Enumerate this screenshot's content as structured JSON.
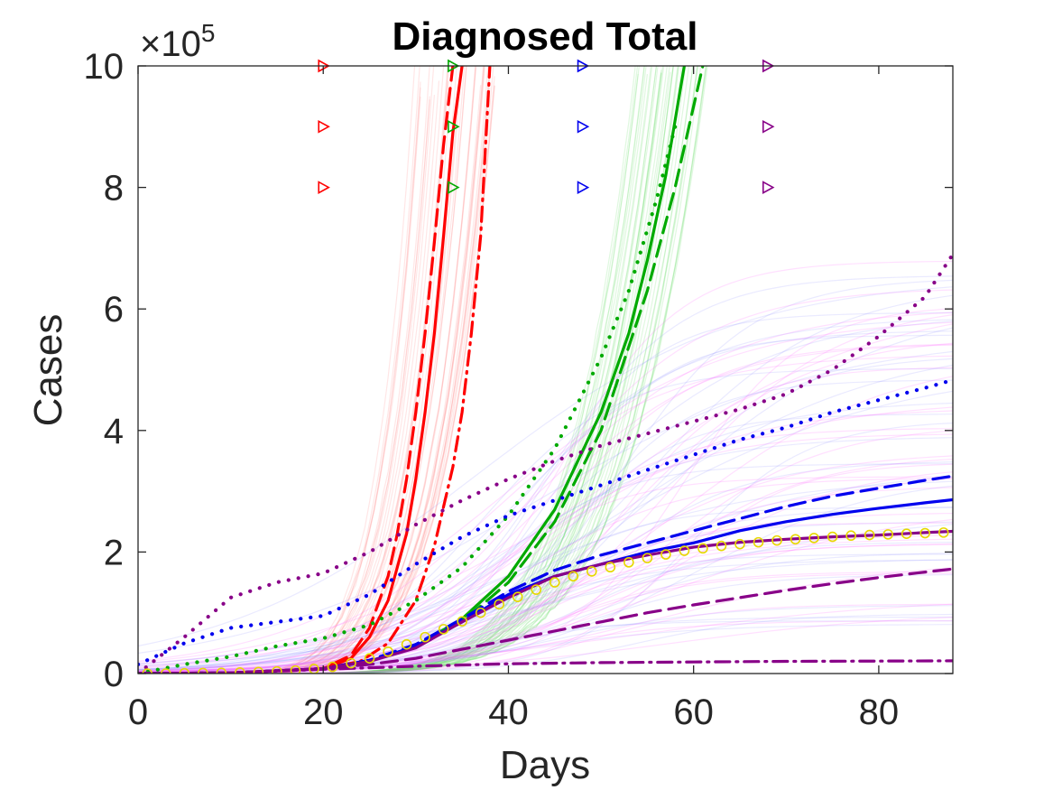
{
  "chart_data": {
    "type": "line",
    "title": "Diagnosed Total",
    "xlabel": "Days",
    "ylabel": "Cases",
    "xlim": [
      0,
      88
    ],
    "ylim": [
      0,
      1000000
    ],
    "x_ticks": [
      0,
      20,
      40,
      60,
      80
    ],
    "y_ticks": [
      0,
      200000,
      400000,
      600000,
      800000,
      1000000
    ],
    "x_tick_labels": [
      "0",
      "20",
      "40",
      "60",
      "80"
    ],
    "y_tick_labels": [
      "0",
      "2",
      "4",
      "6",
      "8",
      "10"
    ],
    "y_multiplier_base": "×10",
    "y_multiplier_exp": "5",
    "grid": false,
    "series": [
      {
        "name": "red solid",
        "color": "#ff0000",
        "style": "solid",
        "x": [
          0,
          10,
          20,
          23,
          25,
          27,
          29,
          30,
          31,
          32,
          33,
          34,
          35
        ],
        "y": [
          0,
          1000,
          8000,
          25000,
          60000,
          120000,
          230000,
          320000,
          430000,
          560000,
          720000,
          890000,
          1000000
        ]
      },
      {
        "name": "red dashed",
        "color": "#ff0000",
        "style": "dashed",
        "x": [
          0,
          10,
          20,
          23,
          25,
          27,
          28,
          29,
          30,
          31,
          32,
          33,
          34
        ],
        "y": [
          0,
          1000,
          8000,
          30000,
          75000,
          160000,
          230000,
          320000,
          430000,
          560000,
          710000,
          870000,
          1000000
        ]
      },
      {
        "name": "red dashdot",
        "color": "#ff0000",
        "style": "dashdot",
        "x": [
          0,
          10,
          20,
          24,
          27,
          30,
          32,
          34,
          35,
          36,
          37,
          38
        ],
        "y": [
          0,
          1000,
          8000,
          20000,
          50000,
          120000,
          210000,
          340000,
          430000,
          560000,
          720000,
          1000000
        ]
      },
      {
        "name": "green solid",
        "color": "#00aa00",
        "style": "solid",
        "x": [
          0,
          10,
          20,
          25,
          30,
          35,
          40,
          45,
          50,
          53,
          55,
          57,
          59
        ],
        "y": [
          0,
          1000,
          8000,
          20000,
          45000,
          90000,
          160000,
          270000,
          430000,
          560000,
          680000,
          820000,
          1000000
        ]
      },
      {
        "name": "green dashed",
        "color": "#00aa00",
        "style": "dashed",
        "x": [
          0,
          10,
          20,
          25,
          30,
          35,
          40,
          45,
          50,
          55,
          58,
          61
        ],
        "y": [
          0,
          1000,
          8000,
          20000,
          45000,
          85000,
          150000,
          250000,
          400000,
          630000,
          800000,
          1000000
        ]
      },
      {
        "name": "green dotted",
        "color": "#00aa00",
        "style": "dotted",
        "x": [
          0,
          5,
          10,
          15,
          20,
          25,
          30,
          35,
          40,
          45,
          50,
          53,
          56,
          58
        ],
        "y": [
          0,
          15000,
          28000,
          45000,
          58000,
          80000,
          120000,
          175000,
          260000,
          370000,
          520000,
          630000,
          780000,
          900000
        ]
      },
      {
        "name": "blue solid",
        "color": "#0000ee",
        "style": "solid",
        "x": [
          0,
          10,
          20,
          25,
          30,
          35,
          40,
          45,
          50,
          55,
          60,
          65,
          70,
          75,
          80,
          85,
          88
        ],
        "y": [
          0,
          1000,
          8000,
          20000,
          45000,
          85000,
          130000,
          160000,
          180000,
          200000,
          215000,
          235000,
          250000,
          262000,
          272000,
          281000,
          286000
        ]
      },
      {
        "name": "blue dashed",
        "color": "#0000ee",
        "style": "dashed",
        "x": [
          0,
          10,
          20,
          25,
          30,
          35,
          40,
          45,
          50,
          55,
          60,
          65,
          70,
          75,
          80,
          85,
          88
        ],
        "y": [
          0,
          1000,
          8000,
          22000,
          48000,
          90000,
          135000,
          170000,
          195000,
          215000,
          235000,
          255000,
          275000,
          292000,
          305000,
          318000,
          325000
        ]
      },
      {
        "name": "blue dotted",
        "color": "#0000ee",
        "style": "dotted",
        "x": [
          0,
          5,
          10,
          15,
          20,
          25,
          30,
          35,
          40,
          45,
          50,
          55,
          60,
          65,
          70,
          75,
          80,
          85,
          88
        ],
        "y": [
          15000,
          50000,
          75000,
          85000,
          95000,
          130000,
          180000,
          225000,
          260000,
          285000,
          310000,
          335000,
          360000,
          385000,
          405000,
          430000,
          450000,
          470000,
          483000
        ]
      },
      {
        "name": "purple solid",
        "color": "#880088",
        "style": "solid",
        "x": [
          0,
          10,
          20,
          25,
          30,
          35,
          40,
          45,
          50,
          55,
          60,
          65,
          70,
          75,
          80,
          85,
          88
        ],
        "y": [
          0,
          1000,
          8000,
          20000,
          42000,
          85000,
          125000,
          160000,
          180000,
          195000,
          208000,
          216000,
          221000,
          225000,
          228000,
          232000,
          234000
        ]
      },
      {
        "name": "purple dashed",
        "color": "#880088",
        "style": "dashed",
        "x": [
          0,
          10,
          20,
          25,
          30,
          35,
          40,
          45,
          50,
          55,
          60,
          65,
          70,
          75,
          80,
          85,
          88
        ],
        "y": [
          0,
          1000,
          8000,
          15000,
          25000,
          40000,
          55000,
          70000,
          85000,
          100000,
          113000,
          125000,
          137000,
          148000,
          158000,
          167000,
          172000
        ]
      },
      {
        "name": "purple dashdot",
        "color": "#880088",
        "style": "dashdot",
        "x": [
          0,
          10,
          20,
          30,
          40,
          50,
          60,
          70,
          80,
          88
        ],
        "y": [
          0,
          1000,
          7000,
          12000,
          16000,
          18000,
          19000,
          20000,
          20500,
          21000
        ]
      },
      {
        "name": "purple dotted",
        "color": "#880088",
        "style": "dotted",
        "x": [
          0,
          5,
          10,
          15,
          20,
          25,
          30,
          35,
          40,
          45,
          50,
          55,
          60,
          65,
          70,
          75,
          80,
          85,
          88
        ],
        "y": [
          0,
          60000,
          125000,
          150000,
          165000,
          200000,
          245000,
          285000,
          320000,
          350000,
          375000,
          395000,
          415000,
          435000,
          460000,
          500000,
          555000,
          620000,
          690000
        ]
      },
      {
        "name": "observed data",
        "color": "#e6d800",
        "style": "markers",
        "x": [
          1,
          3,
          5,
          7,
          9,
          11,
          13,
          15,
          17,
          19,
          21,
          23,
          25,
          27,
          29,
          31,
          33,
          35,
          37,
          39,
          41,
          43,
          45,
          47,
          49,
          51,
          53,
          55,
          57,
          59,
          61,
          63,
          65,
          67,
          69,
          71,
          73,
          75,
          77,
          79,
          81,
          83,
          85,
          87
        ],
        "y": [
          0,
          0,
          500,
          800,
          1200,
          1800,
          2500,
          3500,
          5000,
          7500,
          11000,
          17000,
          25000,
          36000,
          48000,
          60000,
          73000,
          86000,
          100000,
          114000,
          126000,
          138000,
          150000,
          160000,
          168000,
          175000,
          183000,
          190000,
          196000,
          202000,
          206000,
          210000,
          213000,
          216000,
          219000,
          221000,
          223000,
          225000,
          227000,
          228000,
          229000,
          230000,
          231000,
          232000
        ]
      }
    ],
    "event_markers": [
      {
        "series": "red",
        "color": "#ff0000",
        "day": 20,
        "y": [
          1000000,
          900000,
          800000
        ]
      },
      {
        "series": "green",
        "color": "#00aa00",
        "day": 34,
        "y": [
          1000000,
          900000,
          800000
        ]
      },
      {
        "series": "blue",
        "color": "#0000ee",
        "day": 48,
        "y": [
          1000000,
          900000,
          800000
        ]
      },
      {
        "series": "purple",
        "color": "#880088",
        "day": 68,
        "y": [
          1000000,
          900000,
          800000
        ]
      }
    ],
    "ensembles": [
      {
        "name": "red ensemble",
        "color": "#ff8080",
        "opacity": 0.08,
        "day_lo": 30,
        "day_hi": 39,
        "count": 40
      },
      {
        "name": "green ensemble",
        "color": "#66dd66",
        "opacity": 0.08,
        "day_lo": 54,
        "day_hi": 62,
        "count": 40
      },
      {
        "name": "blue ensemble",
        "color": "#8888ff",
        "opacity": 0.07,
        "day_lo": 0,
        "day_hi": 0,
        "count": 40
      },
      {
        "name": "purple ensemble",
        "color": "#ff66ff",
        "opacity": 0.08,
        "day_lo": 0,
        "day_hi": 0,
        "count": 40
      }
    ]
  }
}
